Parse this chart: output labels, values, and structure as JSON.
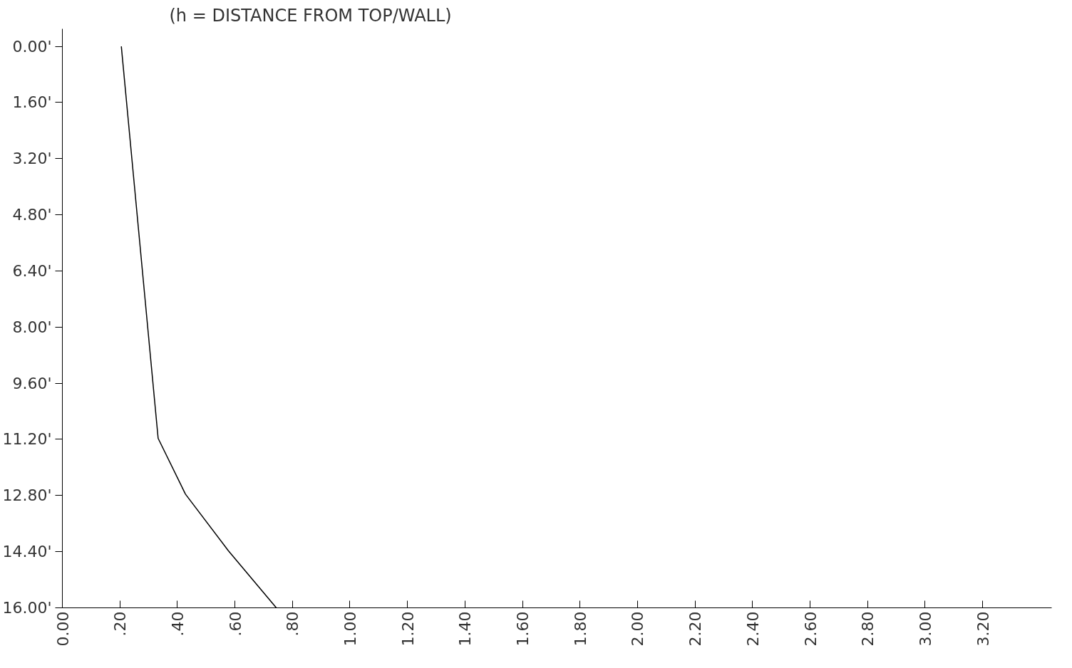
{
  "chart_data": {
    "type": "line",
    "annotations": [
      "(h = DISTANCE FROM TOP/WALL)"
    ],
    "x": [
      0.205,
      0.333,
      0.428,
      0.577,
      0.744
    ],
    "series": [
      {
        "color": "#000000",
        "values": [
          0,
          11.17,
          12.76,
          14.37,
          16
        ]
      }
    ],
    "xlim": [
      0,
      3.44
    ],
    "ylim": [
      16,
      -0.5
    ],
    "xticks": [
      {
        "value": 0,
        "label": "0.00"
      },
      {
        "value": 0.2,
        "label": ".20"
      },
      {
        "value": 0.4,
        "label": ".40"
      },
      {
        "value": 0.6,
        "label": ".60"
      },
      {
        "value": 0.8,
        "label": ".80"
      },
      {
        "value": 1.0,
        "label": "1.00"
      },
      {
        "value": 1.2,
        "label": "1.20"
      },
      {
        "value": 1.4,
        "label": "1.40"
      },
      {
        "value": 1.6,
        "label": "1.60"
      },
      {
        "value": 1.8,
        "label": "1.80"
      },
      {
        "value": 2.0,
        "label": "2.00"
      },
      {
        "value": 2.2,
        "label": "2.20"
      },
      {
        "value": 2.4,
        "label": "2.40"
      },
      {
        "value": 2.6,
        "label": "2.60"
      },
      {
        "value": 2.8,
        "label": "2.80"
      },
      {
        "value": 3.0,
        "label": "3.00"
      },
      {
        "value": 3.2,
        "label": "3.20"
      }
    ],
    "yticks": [
      {
        "value": 0,
        "label": "0.00'"
      },
      {
        "value": 1.6,
        "label": "1.60'"
      },
      {
        "value": 3.2,
        "label": "3.20'"
      },
      {
        "value": 4.8,
        "label": "4.80'"
      },
      {
        "value": 6.4,
        "label": "6.40'"
      },
      {
        "value": 8,
        "label": "8.00'"
      },
      {
        "value": 9.6,
        "label": "9.60'"
      },
      {
        "value": 11.2,
        "label": "11.20'"
      },
      {
        "value": 12.8,
        "label": "12.80'"
      },
      {
        "value": 14.4,
        "label": "14.40'"
      },
      {
        "value": 16,
        "label": "16.00'"
      }
    ],
    "grid": false,
    "marker": "none",
    "line_style": "solid"
  }
}
